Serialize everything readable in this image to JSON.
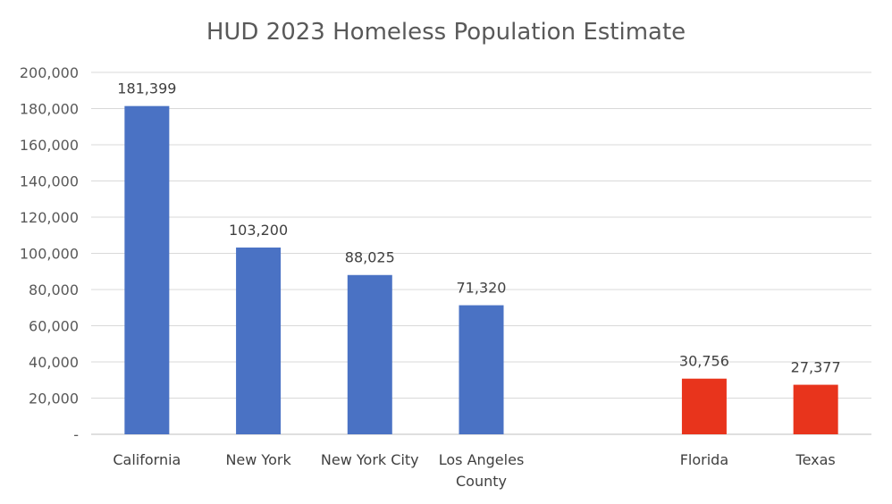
{
  "chart_data": {
    "type": "bar",
    "title": "HUD 2023 Homeless Population Estimate",
    "xlabel": "",
    "ylabel": "",
    "ylim": [
      0,
      200000
    ],
    "y_ticks": [
      0,
      20000,
      40000,
      60000,
      80000,
      100000,
      120000,
      140000,
      160000,
      180000,
      200000
    ],
    "y_tick_labels": [
      "-",
      "20,000",
      "40,000",
      "60,000",
      "80,000",
      "100,000",
      "120,000",
      "140,000",
      "160,000",
      "180,000",
      "200,000"
    ],
    "grid": true,
    "categories": [
      {
        "label_lines": [
          "California"
        ],
        "value": 181399,
        "value_label": "181,399",
        "color": "#4a72c4"
      },
      {
        "label_lines": [
          "New York"
        ],
        "value": 103200,
        "value_label": "103,200",
        "color": "#4a72c4"
      },
      {
        "label_lines": [
          "New York City"
        ],
        "value": 88025,
        "value_label": "88,025",
        "color": "#4a72c4"
      },
      {
        "label_lines": [
          "Los Angeles",
          "County"
        ],
        "value": 71320,
        "value_label": "71,320",
        "color": "#4a72c4"
      },
      {
        "label_lines": [
          ""
        ],
        "value": null,
        "value_label": "",
        "color": ""
      },
      {
        "label_lines": [
          "Florida"
        ],
        "value": 30756,
        "value_label": "30,756",
        "color": "#e8341c"
      },
      {
        "label_lines": [
          "Texas"
        ],
        "value": 27377,
        "value_label": "27,377",
        "color": "#e8341c"
      }
    ]
  }
}
